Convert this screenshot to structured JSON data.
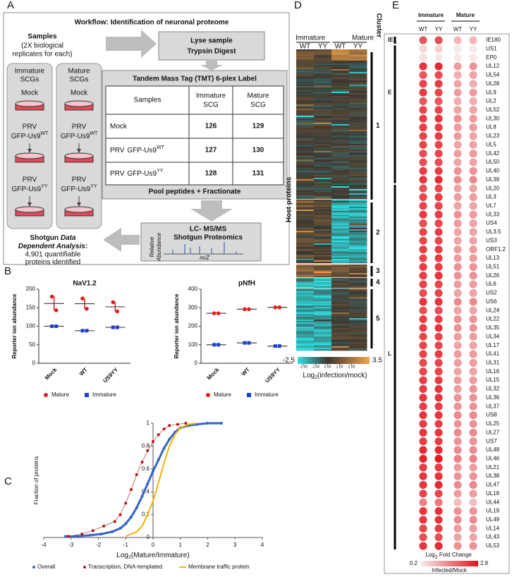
{
  "panel_labels": [
    "A",
    "B",
    "C",
    "D",
    "E"
  ],
  "workflow": {
    "title": "Workflow: Identification of neuronal proteome",
    "samples_title": "Samples",
    "samples_note": [
      "(2X biological",
      "replicates for each)"
    ],
    "columns": [
      [
        "Immature",
        "SCGs"
      ],
      [
        "Mature",
        "SCGs"
      ]
    ],
    "mock": "Mock",
    "prv": "PRV",
    "gfp": "GFP-Us9",
    "wt": "WT",
    "yy": "YY",
    "lyse": [
      "Lyse sample",
      "Trypsin Digest"
    ],
    "tmt_title": "Tandem Mass Tag (TMT) 6-plex Label",
    "table": {
      "header": [
        "Samples",
        [
          "Immature",
          "SCG"
        ],
        [
          "Mature",
          "SCG"
        ]
      ],
      "rows": [
        [
          126,
          129
        ],
        [
          127,
          130
        ],
        [
          128,
          131
        ]
      ],
      "tag_colors": [
        [
          "#1f3f9a",
          "#2e7d32"
        ],
        [
          "#e01010",
          "#d08a00"
        ],
        [
          "#7f93b0",
          "#2e8b3a"
        ]
      ]
    },
    "pool": "Pool peptides + Fractionate",
    "lcms": [
      "LC- MS/MS",
      "Shotgun Proteomics"
    ],
    "spectrum_axes": [
      "Relative",
      "Abundance",
      "m/Z"
    ],
    "shotgun": [
      "Shotgun ",
      "Data",
      "Dependent Analysis",
      ":",
      "4,901 quantifiable",
      "proteins identified"
    ]
  },
  "chart_data": [
    {
      "type": "dotplot",
      "title": "NaV1.2",
      "ylabel": "Reporter ion abundance",
      "categories": [
        "Mock",
        "WT",
        "US9YY"
      ],
      "ylim": [
        0,
        200
      ],
      "yticks": [
        0,
        50,
        100,
        150,
        200
      ],
      "series": [
        {
          "name": "Mature",
          "color": "#e02020",
          "marker": "circle",
          "values": [
            [
              180,
              143
            ],
            [
              175,
              147
            ],
            [
              165,
              140
            ]
          ]
        },
        {
          "name": "Immature",
          "color": "#1f3fd0",
          "marker": "square",
          "values": [
            [
              100,
              100
            ],
            [
              88,
              88
            ],
            [
              97,
              97
            ]
          ]
        }
      ]
    },
    {
      "type": "dotplot",
      "title": "pNfH",
      "ylabel": "Reporter ion abundance",
      "categories": [
        "Mock",
        "WT",
        "US9YY"
      ],
      "ylim": [
        0,
        400
      ],
      "yticks": [
        0,
        100,
        200,
        300,
        400
      ],
      "series": [
        {
          "name": "Mature",
          "color": "#e02020",
          "marker": "circle",
          "values": [
            [
              270,
              270
            ],
            [
              292,
              292
            ],
            [
              302,
              302
            ]
          ]
        },
        {
          "name": "Immature",
          "color": "#1f3fd0",
          "marker": "square",
          "values": [
            [
              100,
              100
            ],
            [
              110,
              110
            ],
            [
              93,
              93
            ]
          ]
        }
      ]
    },
    {
      "type": "cdf",
      "ylabel": "Fraction of proteins",
      "xlabel_parts": [
        "Log",
        "2",
        "(Mature/Immature)"
      ],
      "xlim": [
        -4,
        4
      ],
      "xticks": [
        -4,
        -3,
        -2,
        -1,
        0,
        1,
        2,
        3,
        4
      ],
      "ylim": [
        0,
        1
      ],
      "yticks": [
        0,
        0.2,
        0.4,
        0.6,
        0.8,
        1
      ],
      "series": [
        {
          "name": "Overall",
          "color": "#3565c8",
          "marker": "dot",
          "x": [
            -3.2,
            -2.8,
            -2.3,
            -1.9,
            -1.5,
            -1.2,
            -1.0,
            -0.8,
            -0.6,
            -0.4,
            -0.2,
            0,
            0.2,
            0.4,
            0.6,
            0.8,
            1.0,
            1.3,
            1.6,
            2.0,
            2.5
          ],
          "y": [
            0.01,
            0.01,
            0.02,
            0.03,
            0.05,
            0.08,
            0.12,
            0.18,
            0.26,
            0.36,
            0.47,
            0.58,
            0.68,
            0.78,
            0.86,
            0.92,
            0.96,
            0.98,
            0.99,
            1.0,
            1.0
          ]
        },
        {
          "name": "Transcription, DNA-templated",
          "color": "#b01515",
          "marker": "dot",
          "x": [
            -3.1,
            -2.6,
            -2.2,
            -1.8,
            -1.4,
            -1.2,
            -1.0,
            -0.8,
            -0.6,
            -0.4,
            -0.2,
            0,
            0.2,
            0.4,
            0.6,
            0.9,
            1.2
          ],
          "y": [
            0.01,
            0.03,
            0.06,
            0.1,
            0.14,
            0.2,
            0.3,
            0.42,
            0.55,
            0.66,
            0.76,
            0.84,
            0.9,
            0.95,
            0.98,
            0.99,
            1.0
          ]
        },
        {
          "name": "Membrane traffic protein",
          "color": "#f0b400",
          "marker": "line",
          "x": [
            -1.0,
            -0.6,
            -0.4,
            -0.2,
            0,
            0.2,
            0.4,
            0.6,
            0.8,
            1.0,
            1.3,
            1.6
          ],
          "y": [
            0.01,
            0.05,
            0.1,
            0.2,
            0.32,
            0.48,
            0.65,
            0.8,
            0.9,
            0.96,
            0.99,
            1.0
          ]
        }
      ]
    }
  ],
  "heatmap": {
    "groups": [
      {
        "label": "Immature",
        "columns": [
          "WT",
          "YY"
        ]
      },
      {
        "label": "Mature",
        "columns": [
          "WT",
          "YY"
        ]
      }
    ],
    "cluster_title": "Cluster",
    "clusters": [
      "1",
      "2",
      "3",
      "4",
      "5"
    ],
    "ylabel": "Host proteins",
    "colorbar": {
      "min": -2.5,
      "max": 3.5,
      "ticks": [
        {
          "value": -2,
          "label": "-2.00"
        },
        {
          "value": -1,
          "label": "-1.00"
        },
        {
          "value": 0,
          "label": "0.00"
        },
        {
          "value": 1,
          "label": "1.00"
        },
        {
          "value": 2,
          "label": "2.00"
        }
      ],
      "colors": [
        "#2fe3e6",
        "#3b3631",
        "#f3a34a"
      ],
      "label_parts": [
        "Log",
        "2",
        "(infection/mock)"
      ]
    }
  },
  "dot_matrix": {
    "groups": [
      {
        "label": "Immature",
        "columns": [
          "WT",
          "YY"
        ]
      },
      {
        "label": "Mature",
        "columns": [
          "WT",
          "YY"
        ]
      }
    ],
    "classes": [
      "IE",
      "E",
      "L"
    ],
    "genes": [
      "IE180",
      "US1",
      "EP0",
      "UL12",
      "UL54",
      "UL28",
      "UL9",
      "UL2",
      "UL52",
      "UL30",
      "UL8",
      "UL23",
      "UL5",
      "UL42",
      "UL50",
      "UL40",
      "UL39",
      "UL20",
      "UL3",
      "UL7",
      "UL33",
      "US4",
      "UL3.5",
      "US3",
      "ORF1.2",
      "UL13",
      "UL51",
      "UL26",
      "UL6",
      "US2",
      "US6",
      "UL24",
      "UL22",
      "UL35",
      "UL34",
      "UL17",
      "UL41",
      "UL31",
      "UL16",
      "UL15",
      "UL32",
      "UL36",
      "UL37",
      "US8",
      "UL25",
      "UL27",
      "US7",
      "UL48",
      "UL46",
      "UL21",
      "UL38",
      "UL47",
      "UL18",
      "UL44",
      "UL19",
      "UL49",
      "UL14",
      "UL43",
      "UL53"
    ],
    "values": [
      [
        2.0,
        2.1,
        0.9,
        0.9
      ],
      [
        0.5,
        0.6,
        0.3,
        0.3
      ],
      [
        0.4,
        0.3,
        0.3,
        0.3
      ],
      [
        2.4,
        2.5,
        1.2,
        1.3
      ],
      [
        2.0,
        2.1,
        1.0,
        1.1
      ],
      [
        2.2,
        2.3,
        1.1,
        1.0
      ],
      [
        2.3,
        2.2,
        1.2,
        1.2
      ],
      [
        2.0,
        2.0,
        1.0,
        1.0
      ],
      [
        2.2,
        2.2,
        1.1,
        1.1
      ],
      [
        2.3,
        2.4,
        1.3,
        1.2
      ],
      [
        2.3,
        2.3,
        1.2,
        1.2
      ],
      [
        2.2,
        2.3,
        1.2,
        1.1
      ],
      [
        2.2,
        2.2,
        1.1,
        1.1
      ],
      [
        2.1,
        2.2,
        1.2,
        1.2
      ],
      [
        2.1,
        2.1,
        1.1,
        1.1
      ],
      [
        2.3,
        2.3,
        1.3,
        1.3
      ],
      [
        2.4,
        2.5,
        1.4,
        1.4
      ],
      [
        2.1,
        2.2,
        1.1,
        1.1
      ],
      [
        2.2,
        2.3,
        1.2,
        1.2
      ],
      [
        2.2,
        2.2,
        1.1,
        1.1
      ],
      [
        2.3,
        2.3,
        1.3,
        1.2
      ],
      [
        2.1,
        2.2,
        1.2,
        1.1
      ],
      [
        2.2,
        2.3,
        1.1,
        1.1
      ],
      [
        2.2,
        2.2,
        1.1,
        1.1
      ],
      [
        2.3,
        2.3,
        1.2,
        1.2
      ],
      [
        2.2,
        2.3,
        1.2,
        1.2
      ],
      [
        2.3,
        2.3,
        1.3,
        1.3
      ],
      [
        2.3,
        2.4,
        1.3,
        1.3
      ],
      [
        2.2,
        2.2,
        1.2,
        1.2
      ],
      [
        2.1,
        2.2,
        1.1,
        1.1
      ],
      [
        2.4,
        2.4,
        1.4,
        1.4
      ],
      [
        2.1,
        2.1,
        1.1,
        1.1
      ],
      [
        2.3,
        2.3,
        1.3,
        1.3
      ],
      [
        2.3,
        2.4,
        1.3,
        1.3
      ],
      [
        2.2,
        2.2,
        1.2,
        1.2
      ],
      [
        2.2,
        2.2,
        1.1,
        1.1
      ],
      [
        2.2,
        2.3,
        1.2,
        1.2
      ],
      [
        2.2,
        2.2,
        1.2,
        1.2
      ],
      [
        2.2,
        2.2,
        1.1,
        1.1
      ],
      [
        2.3,
        2.3,
        1.2,
        1.2
      ],
      [
        2.3,
        2.4,
        1.2,
        1.3
      ],
      [
        2.4,
        2.4,
        1.3,
        1.3
      ],
      [
        2.3,
        2.3,
        1.3,
        1.3
      ],
      [
        2.4,
        2.4,
        1.4,
        1.4
      ],
      [
        2.3,
        2.3,
        1.3,
        1.3
      ],
      [
        2.4,
        2.4,
        1.4,
        1.4
      ],
      [
        2.3,
        2.3,
        1.3,
        1.3
      ],
      [
        2.5,
        2.5,
        1.4,
        1.4
      ],
      [
        2.6,
        2.7,
        1.5,
        1.5
      ],
      [
        2.3,
        2.3,
        1.2,
        1.2
      ],
      [
        2.4,
        2.4,
        1.3,
        1.3
      ],
      [
        2.4,
        2.5,
        1.4,
        1.4
      ],
      [
        2.2,
        2.2,
        1.2,
        1.2
      ],
      [
        1.5,
        1.6,
        0.8,
        0.8
      ],
      [
        2.4,
        2.4,
        1.3,
        1.3
      ],
      [
        2.4,
        2.4,
        1.4,
        1.4
      ],
      [
        2.2,
        2.3,
        1.2,
        1.2
      ],
      [
        2.1,
        2.1,
        1.1,
        1.1
      ],
      [
        2.4,
        2.5,
        1.3,
        1.3
      ]
    ],
    "scale": {
      "min": 0.2,
      "max": 2.8,
      "colors": [
        "#f7f1f1",
        "#e0141c"
      ],
      "title_parts": [
        "Log",
        "2",
        " Fold Change"
      ],
      "subtitle": "Infected/Mock"
    }
  }
}
